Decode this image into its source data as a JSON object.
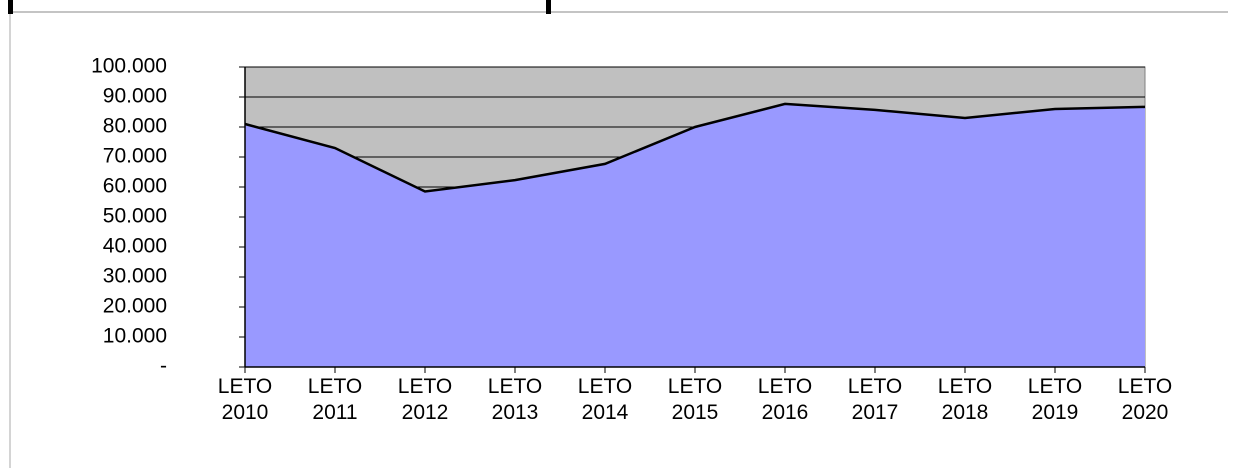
{
  "chart_data": {
    "type": "area",
    "categories": [
      "LETO 2010",
      "LETO 2011",
      "LETO 2012",
      "LETO 2013",
      "LETO 2014",
      "LETO 2015",
      "LETO 2016",
      "LETO 2017",
      "LETO 2018",
      "LETO 2019",
      "LETO 2020"
    ],
    "values": [
      81000,
      73000,
      58500,
      62300,
      67700,
      80000,
      87700,
      85700,
      83000,
      86000,
      86700
    ],
    "color": "#9999ff",
    "plot_background": "#c0c0c0",
    "ylim": [
      0,
      100000
    ],
    "yticks": [
      {
        "value": 0,
        "label": "-"
      },
      {
        "value": 10000,
        "label": "10.000"
      },
      {
        "value": 20000,
        "label": "20.000"
      },
      {
        "value": 30000,
        "label": "30.000"
      },
      {
        "value": 40000,
        "label": "40.000"
      },
      {
        "value": 50000,
        "label": "50.000"
      },
      {
        "value": 60000,
        "label": "60.000"
      },
      {
        "value": 70000,
        "label": "70.000"
      },
      {
        "value": 80000,
        "label": "80.000"
      },
      {
        "value": 90000,
        "label": "90.000"
      },
      {
        "value": 100000,
        "label": "100.000"
      }
    ],
    "grid": true
  }
}
